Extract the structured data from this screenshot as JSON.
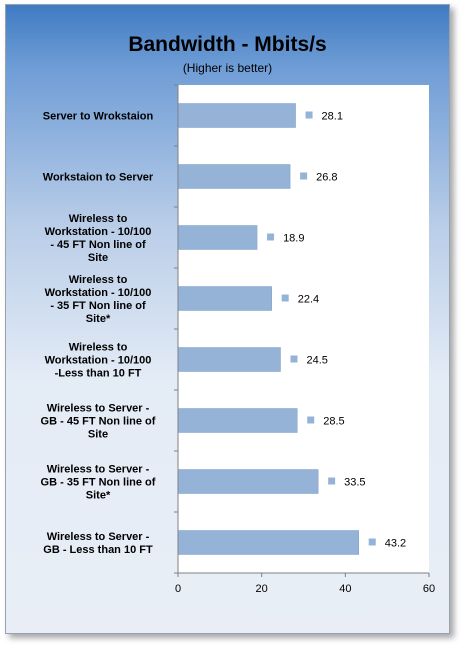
{
  "chart_data": {
    "type": "bar",
    "orientation": "horizontal",
    "title": "Bandwidth - Mbits/s",
    "subtitle": "(Higher is better)",
    "categories": [
      [
        "Server to Wrokstaion"
      ],
      [
        "Workstaion to Server"
      ],
      [
        "Wireless to",
        "Workstation - 10/100",
        "- 45 FT Non line of",
        "Site"
      ],
      [
        "Wireless to",
        "Workstation - 10/100",
        "- 35 FT Non line of",
        "Site*"
      ],
      [
        "Wireless to",
        "Workstation - 10/100",
        "-Less than 10 FT"
      ],
      [
        "Wireless to Server -",
        "GB - 45 FT Non line of",
        "Site"
      ],
      [
        "Wireless to Server -",
        "GB - 35 FT Non line of",
        "Site*"
      ],
      [
        "Wireless to Server -",
        "GB - Less than 10 FT"
      ]
    ],
    "values": [
      28.1,
      26.8,
      18.9,
      22.4,
      24.5,
      28.5,
      33.5,
      43.2
    ],
    "data_labels": [
      "28.1",
      "26.8",
      "18.9",
      "22.4",
      "24.5",
      "28.5",
      "33.5",
      "43.2"
    ],
    "xlim": [
      0,
      60
    ],
    "xticks": [
      "0",
      "20",
      "40",
      "60"
    ],
    "grid": false,
    "legend": "none",
    "colors": {
      "bar": "#95b3d7",
      "bar_edge": "#7f9fc7",
      "marker": "#95b3d7"
    }
  }
}
